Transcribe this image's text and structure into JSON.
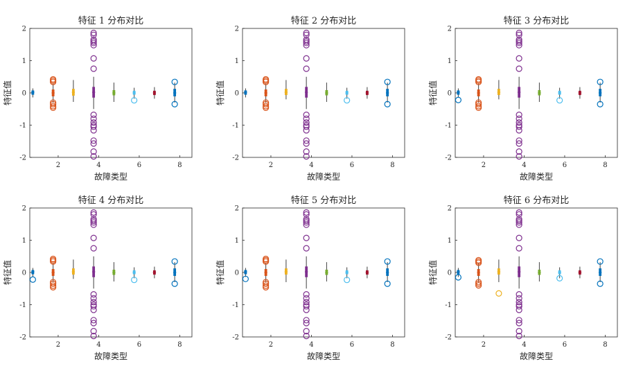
{
  "chart_data": [
    {
      "type": "boxplot",
      "title": "特征 1 分布对比",
      "xlabel": "故障类型",
      "ylabel": "特征值",
      "xlim": [
        0.6,
        8.6
      ],
      "ylim": [
        -2,
        2
      ],
      "xticks": [
        2,
        4,
        6,
        8
      ],
      "yticks": [
        -2,
        -1,
        0,
        1,
        2
      ],
      "boxes": [
        {
          "x": 0.75,
          "color": "#0072BD",
          "min": -0.14,
          "q1": -0.05,
          "median": 0.02,
          "q3": 0.07,
          "max": 0.14,
          "outliers": []
        },
        {
          "x": 1.75,
          "color": "#D95319",
          "min": -0.3,
          "q1": -0.1,
          "median": 0.0,
          "q3": 0.1,
          "max": 0.3,
          "outliers": [
            0.42,
            0.38,
            0.34,
            -0.3,
            -0.35,
            -0.41,
            -0.46
          ]
        },
        {
          "x": 2.75,
          "color": "#EDB120",
          "min": -0.28,
          "q1": -0.08,
          "median": 0.02,
          "q3": 0.12,
          "max": 0.4,
          "outliers": []
        },
        {
          "x": 3.75,
          "color": "#7E2F8E",
          "min": -0.5,
          "q1": -0.14,
          "median": 0.02,
          "q3": 0.18,
          "max": 0.5,
          "outliers": [
            1.86,
            1.8,
            1.65,
            1.6,
            1.55,
            1.48,
            1.07,
            0.75,
            -0.68,
            -0.8,
            -0.92,
            -1.0,
            -1.05,
            -1.16,
            -1.48,
            -1.57,
            -1.82,
            -1.97
          ]
        },
        {
          "x": 4.75,
          "color": "#77AC30",
          "min": -0.28,
          "q1": -0.07,
          "median": 0.0,
          "q3": 0.08,
          "max": 0.32,
          "outliers": []
        },
        {
          "x": 5.75,
          "color": "#4DBEEE",
          "min": -0.18,
          "q1": -0.05,
          "median": 0.0,
          "q3": 0.06,
          "max": 0.16,
          "outliers": [
            -0.23
          ]
        },
        {
          "x": 6.75,
          "color": "#A2142F",
          "min": -0.18,
          "q1": -0.06,
          "median": 0.0,
          "q3": 0.06,
          "max": 0.18,
          "outliers": []
        },
        {
          "x": 7.75,
          "color": "#0072BD",
          "min": -0.3,
          "q1": -0.1,
          "median": 0.0,
          "q3": 0.12,
          "max": 0.32,
          "outliers": [
            0.34,
            -0.35
          ]
        }
      ]
    },
    {
      "type": "boxplot",
      "title": "特征 2 分布对比",
      "xlabel": "故障类型",
      "ylabel": "特征值",
      "xlim": [
        0.6,
        8.6
      ],
      "ylim": [
        -2,
        2
      ],
      "xticks": [
        2,
        4,
        6,
        8
      ],
      "yticks": [
        -2,
        -1,
        0,
        1,
        2
      ],
      "boxes": [
        {
          "x": 0.75,
          "color": "#0072BD",
          "min": -0.14,
          "q1": -0.05,
          "median": 0.02,
          "q3": 0.07,
          "max": 0.14,
          "outliers": []
        },
        {
          "x": 1.75,
          "color": "#D95319",
          "min": -0.3,
          "q1": -0.1,
          "median": 0.0,
          "q3": 0.1,
          "max": 0.3,
          "outliers": [
            0.42,
            0.38,
            0.34,
            -0.3,
            -0.35,
            -0.41,
            -0.46
          ]
        },
        {
          "x": 2.75,
          "color": "#EDB120",
          "min": -0.2,
          "q1": -0.06,
          "median": 0.02,
          "q3": 0.12,
          "max": 0.4,
          "outliers": []
        },
        {
          "x": 3.75,
          "color": "#7E2F8E",
          "min": -0.5,
          "q1": -0.14,
          "median": 0.02,
          "q3": 0.18,
          "max": 0.5,
          "outliers": [
            1.86,
            1.8,
            1.65,
            1.6,
            1.55,
            1.48,
            1.07,
            0.75,
            -0.68,
            -0.8,
            -0.92,
            -1.0,
            -1.05,
            -1.16,
            -1.48,
            -1.57,
            -1.82,
            -1.97
          ]
        },
        {
          "x": 4.75,
          "color": "#77AC30",
          "min": -0.28,
          "q1": -0.07,
          "median": 0.0,
          "q3": 0.08,
          "max": 0.32,
          "outliers": []
        },
        {
          "x": 5.75,
          "color": "#4DBEEE",
          "min": -0.18,
          "q1": -0.05,
          "median": 0.0,
          "q3": 0.06,
          "max": 0.16,
          "outliers": [
            -0.23
          ]
        },
        {
          "x": 6.75,
          "color": "#A2142F",
          "min": -0.18,
          "q1": -0.06,
          "median": 0.0,
          "q3": 0.06,
          "max": 0.18,
          "outliers": []
        },
        {
          "x": 7.75,
          "color": "#0072BD",
          "min": -0.3,
          "q1": -0.1,
          "median": 0.0,
          "q3": 0.12,
          "max": 0.32,
          "outliers": [
            0.34,
            -0.35
          ]
        }
      ]
    },
    {
      "type": "boxplot",
      "title": "特征 3 分布对比",
      "xlabel": "故障类型",
      "ylabel": "特征值",
      "xlim": [
        0.6,
        8.6
      ],
      "ylim": [
        -2,
        2
      ],
      "xticks": [
        2,
        4,
        6,
        8
      ],
      "yticks": [
        -2,
        -1,
        0,
        1,
        2
      ],
      "boxes": [
        {
          "x": 0.75,
          "color": "#0072BD",
          "min": -0.14,
          "q1": -0.05,
          "median": 0.02,
          "q3": 0.07,
          "max": 0.14,
          "outliers": [
            -0.22
          ]
        },
        {
          "x": 1.75,
          "color": "#D95319",
          "min": -0.3,
          "q1": -0.1,
          "median": 0.0,
          "q3": 0.1,
          "max": 0.3,
          "outliers": [
            0.42,
            0.38,
            0.34,
            -0.3,
            -0.35,
            -0.41,
            -0.46
          ]
        },
        {
          "x": 2.75,
          "color": "#EDB120",
          "min": -0.2,
          "q1": -0.06,
          "median": 0.02,
          "q3": 0.12,
          "max": 0.4,
          "outliers": []
        },
        {
          "x": 3.75,
          "color": "#7E2F8E",
          "min": -0.5,
          "q1": -0.14,
          "median": 0.02,
          "q3": 0.18,
          "max": 0.5,
          "outliers": [
            1.86,
            1.8,
            1.65,
            1.6,
            1.55,
            1.48,
            1.07,
            0.75,
            -0.68,
            -0.8,
            -0.92,
            -1.0,
            -1.05,
            -1.16,
            -1.48,
            -1.57,
            -1.82,
            -1.97
          ]
        },
        {
          "x": 4.75,
          "color": "#77AC30",
          "min": -0.28,
          "q1": -0.07,
          "median": 0.0,
          "q3": 0.08,
          "max": 0.32,
          "outliers": []
        },
        {
          "x": 5.75,
          "color": "#4DBEEE",
          "min": -0.18,
          "q1": -0.05,
          "median": 0.0,
          "q3": 0.06,
          "max": 0.16,
          "outliers": [
            -0.23
          ]
        },
        {
          "x": 6.75,
          "color": "#A2142F",
          "min": -0.18,
          "q1": -0.06,
          "median": 0.0,
          "q3": 0.06,
          "max": 0.18,
          "outliers": []
        },
        {
          "x": 7.75,
          "color": "#0072BD",
          "min": -0.3,
          "q1": -0.1,
          "median": 0.0,
          "q3": 0.12,
          "max": 0.32,
          "outliers": [
            0.34,
            -0.35
          ]
        }
      ]
    },
    {
      "type": "boxplot",
      "title": "特征 4 分布对比",
      "xlabel": "故障类型",
      "ylabel": "特征值",
      "xlim": [
        0.6,
        8.6
      ],
      "ylim": [
        -2,
        2
      ],
      "xticks": [
        2,
        4,
        6,
        8
      ],
      "yticks": [
        -2,
        -1,
        0,
        1,
        2
      ],
      "boxes": [
        {
          "x": 0.75,
          "color": "#0072BD",
          "min": -0.14,
          "q1": -0.05,
          "median": 0.02,
          "q3": 0.07,
          "max": 0.14,
          "outliers": [
            -0.22
          ]
        },
        {
          "x": 1.75,
          "color": "#D95319",
          "min": -0.3,
          "q1": -0.1,
          "median": 0.0,
          "q3": 0.1,
          "max": 0.3,
          "outliers": [
            0.42,
            0.38,
            0.34,
            -0.3,
            -0.35,
            -0.41,
            -0.46
          ]
        },
        {
          "x": 2.75,
          "color": "#EDB120",
          "min": -0.2,
          "q1": -0.06,
          "median": 0.02,
          "q3": 0.12,
          "max": 0.4,
          "outliers": []
        },
        {
          "x": 3.75,
          "color": "#7E2F8E",
          "min": -0.5,
          "q1": -0.14,
          "median": 0.02,
          "q3": 0.18,
          "max": 0.5,
          "outliers": [
            1.86,
            1.8,
            1.65,
            1.6,
            1.55,
            1.48,
            1.07,
            0.75,
            -0.68,
            -0.8,
            -0.92,
            -1.0,
            -1.05,
            -1.16,
            -1.48,
            -1.57,
            -1.82,
            -1.97
          ]
        },
        {
          "x": 4.75,
          "color": "#77AC30",
          "min": -0.28,
          "q1": -0.07,
          "median": 0.0,
          "q3": 0.08,
          "max": 0.32,
          "outliers": []
        },
        {
          "x": 5.75,
          "color": "#4DBEEE",
          "min": -0.18,
          "q1": -0.05,
          "median": 0.0,
          "q3": 0.06,
          "max": 0.16,
          "outliers": [
            -0.23
          ]
        },
        {
          "x": 6.75,
          "color": "#A2142F",
          "min": -0.18,
          "q1": -0.06,
          "median": 0.0,
          "q3": 0.06,
          "max": 0.18,
          "outliers": []
        },
        {
          "x": 7.75,
          "color": "#0072BD",
          "min": -0.3,
          "q1": -0.1,
          "median": 0.0,
          "q3": 0.12,
          "max": 0.32,
          "outliers": [
            0.34,
            -0.35
          ]
        }
      ]
    },
    {
      "type": "boxplot",
      "title": "特征 5 分布对比",
      "xlabel": "故障类型",
      "ylabel": "特征值",
      "xlim": [
        0.6,
        8.6
      ],
      "ylim": [
        -2,
        2
      ],
      "xticks": [
        2,
        4,
        6,
        8
      ],
      "yticks": [
        -2,
        -1,
        0,
        1,
        2
      ],
      "boxes": [
        {
          "x": 0.75,
          "color": "#0072BD",
          "min": -0.14,
          "q1": -0.05,
          "median": 0.02,
          "q3": 0.07,
          "max": 0.14,
          "outliers": [
            -0.2
          ]
        },
        {
          "x": 1.75,
          "color": "#D95319",
          "min": -0.3,
          "q1": -0.1,
          "median": 0.0,
          "q3": 0.1,
          "max": 0.3,
          "outliers": [
            0.42,
            0.38,
            0.34,
            -0.3,
            -0.35,
            -0.41,
            -0.46
          ]
        },
        {
          "x": 2.75,
          "color": "#EDB120",
          "min": -0.3,
          "q1": -0.06,
          "median": 0.02,
          "q3": 0.12,
          "max": 0.4,
          "outliers": []
        },
        {
          "x": 3.75,
          "color": "#7E2F8E",
          "min": -0.5,
          "q1": -0.14,
          "median": 0.02,
          "q3": 0.18,
          "max": 0.5,
          "outliers": [
            1.86,
            1.8,
            1.65,
            1.6,
            1.55,
            1.48,
            1.07,
            0.75,
            -0.68,
            -0.8,
            -0.92,
            -1.0,
            -1.05,
            -1.16,
            -1.48,
            -1.57,
            -1.82,
            -1.97
          ]
        },
        {
          "x": 4.75,
          "color": "#77AC30",
          "min": -0.28,
          "q1": -0.07,
          "median": 0.0,
          "q3": 0.08,
          "max": 0.32,
          "outliers": []
        },
        {
          "x": 5.75,
          "color": "#4DBEEE",
          "min": -0.18,
          "q1": -0.05,
          "median": 0.0,
          "q3": 0.06,
          "max": 0.16,
          "outliers": [
            -0.23
          ]
        },
        {
          "x": 6.75,
          "color": "#A2142F",
          "min": -0.18,
          "q1": -0.06,
          "median": 0.0,
          "q3": 0.06,
          "max": 0.18,
          "outliers": []
        },
        {
          "x": 7.75,
          "color": "#0072BD",
          "min": -0.3,
          "q1": -0.1,
          "median": 0.0,
          "q3": 0.12,
          "max": 0.32,
          "outliers": [
            0.34,
            -0.35
          ]
        }
      ]
    },
    {
      "type": "boxplot",
      "title": "特征 6 分布对比",
      "xlabel": "故障类型",
      "ylabel": "特征值",
      "xlim": [
        0.6,
        8.6
      ],
      "ylim": [
        -2,
        2
      ],
      "xticks": [
        2,
        4,
        6,
        8
      ],
      "yticks": [
        -2,
        -1,
        0,
        1,
        2
      ],
      "boxes": [
        {
          "x": 0.75,
          "color": "#0072BD",
          "min": -0.14,
          "q1": -0.05,
          "median": 0.02,
          "q3": 0.07,
          "max": 0.14,
          "outliers": [
            -0.15
          ]
        },
        {
          "x": 1.75,
          "color": "#D95319",
          "min": -0.3,
          "q1": -0.1,
          "median": 0.0,
          "q3": 0.1,
          "max": 0.3,
          "outliers": [
            0.38,
            0.34,
            0.3,
            -0.3,
            -0.35,
            -0.4
          ]
        },
        {
          "x": 2.75,
          "color": "#EDB120",
          "min": -0.3,
          "q1": -0.06,
          "median": 0.02,
          "q3": 0.12,
          "max": 0.4,
          "outliers": [
            -0.65
          ]
        },
        {
          "x": 3.75,
          "color": "#7E2F8E",
          "min": -0.5,
          "q1": -0.14,
          "median": 0.02,
          "q3": 0.18,
          "max": 0.5,
          "outliers": [
            1.86,
            1.8,
            1.65,
            1.6,
            1.55,
            1.48,
            1.07,
            0.75,
            -0.68,
            -0.8,
            -0.92,
            -1.0,
            -1.05,
            -1.16,
            -1.48,
            -1.57,
            -1.82,
            -1.97
          ]
        },
        {
          "x": 4.75,
          "color": "#77AC30",
          "min": -0.28,
          "q1": -0.07,
          "median": 0.0,
          "q3": 0.08,
          "max": 0.32,
          "outliers": []
        },
        {
          "x": 5.75,
          "color": "#4DBEEE",
          "min": -0.18,
          "q1": -0.05,
          "median": 0.0,
          "q3": 0.06,
          "max": 0.16,
          "outliers": [
            -0.18
          ]
        },
        {
          "x": 6.75,
          "color": "#A2142F",
          "min": -0.18,
          "q1": -0.06,
          "median": 0.0,
          "q3": 0.06,
          "max": 0.18,
          "outliers": []
        },
        {
          "x": 7.75,
          "color": "#0072BD",
          "min": -0.3,
          "q1": -0.1,
          "median": 0.0,
          "q3": 0.12,
          "max": 0.32,
          "outliers": [
            0.34,
            -0.35
          ]
        }
      ]
    }
  ]
}
